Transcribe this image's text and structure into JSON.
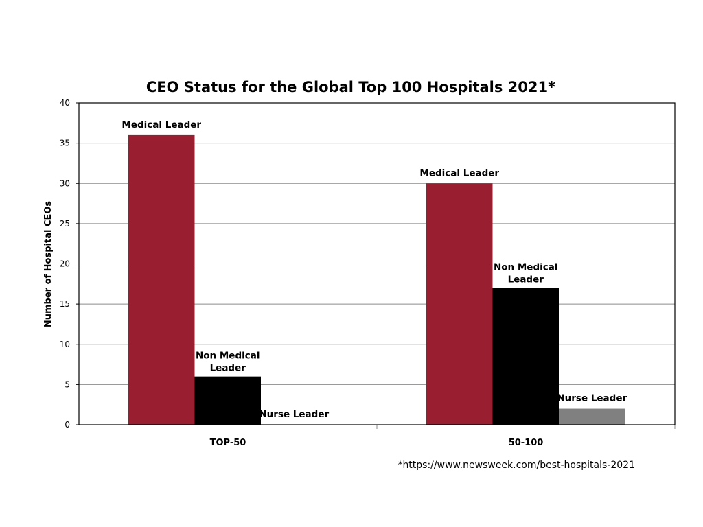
{
  "chart_data": {
    "type": "bar",
    "title": "CEO Status for the Global Top 100 Hospitals 2021*",
    "xlabel": "",
    "ylabel": "Number of Hospital CEOs",
    "ylim": [
      0,
      40
    ],
    "yticks": [
      "0",
      "5",
      "10",
      "15",
      "20",
      "25",
      "30",
      "35",
      "40"
    ],
    "grid": true,
    "legend": "none (data labels above bars)",
    "categories": [
      "TOP-50",
      "50-100"
    ],
    "series": [
      {
        "name": "Medical Leader",
        "values": [
          36,
          30
        ],
        "color": "#991e2f",
        "labels": [
          "Medical Leader",
          "Medical Leader"
        ]
      },
      {
        "name": "Non Medical Leader",
        "values": [
          6,
          17
        ],
        "color": "#000000",
        "labels": [
          "Non Medical Leader",
          "Non Medical Leader"
        ]
      },
      {
        "name": "Nurse Leader",
        "values": [
          0,
          2
        ],
        "color": "#808080",
        "labels": [
          "Nurse Leader",
          "Nurse Leader"
        ]
      }
    ],
    "footnote": "*https://www.newsweek.com/best-hospitals-2021"
  }
}
